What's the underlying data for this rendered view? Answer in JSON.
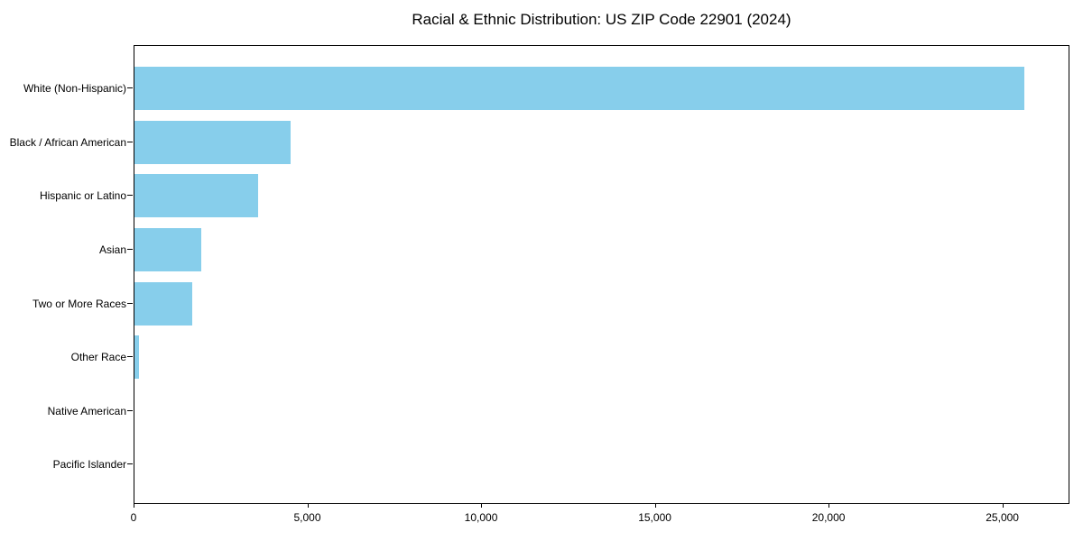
{
  "chart_data": {
    "type": "bar",
    "orientation": "horizontal",
    "title": "Racial & Ethnic Distribution: US ZIP Code 22901 (2024)",
    "categories": [
      "White (Non-Hispanic)",
      "Black / African American",
      "Hispanic or Latino",
      "Asian",
      "Two or More Races",
      "Other Race",
      "Native American",
      "Pacific Islander"
    ],
    "values": [
      25600,
      4500,
      3550,
      1920,
      1650,
      130,
      0,
      0
    ],
    "xlabel": "",
    "ylabel": "",
    "xlim": [
      0,
      26880
    ],
    "xticks": [
      0,
      5000,
      10000,
      15000,
      20000,
      25000
    ],
    "xtick_labels": [
      "0",
      "5,000",
      "10,000",
      "15,000",
      "20,000",
      "25,000"
    ],
    "bar_color": "#87CEEB",
    "axis_color": "#000000",
    "background_color": "#ffffff",
    "grid": false,
    "legend": "none"
  }
}
